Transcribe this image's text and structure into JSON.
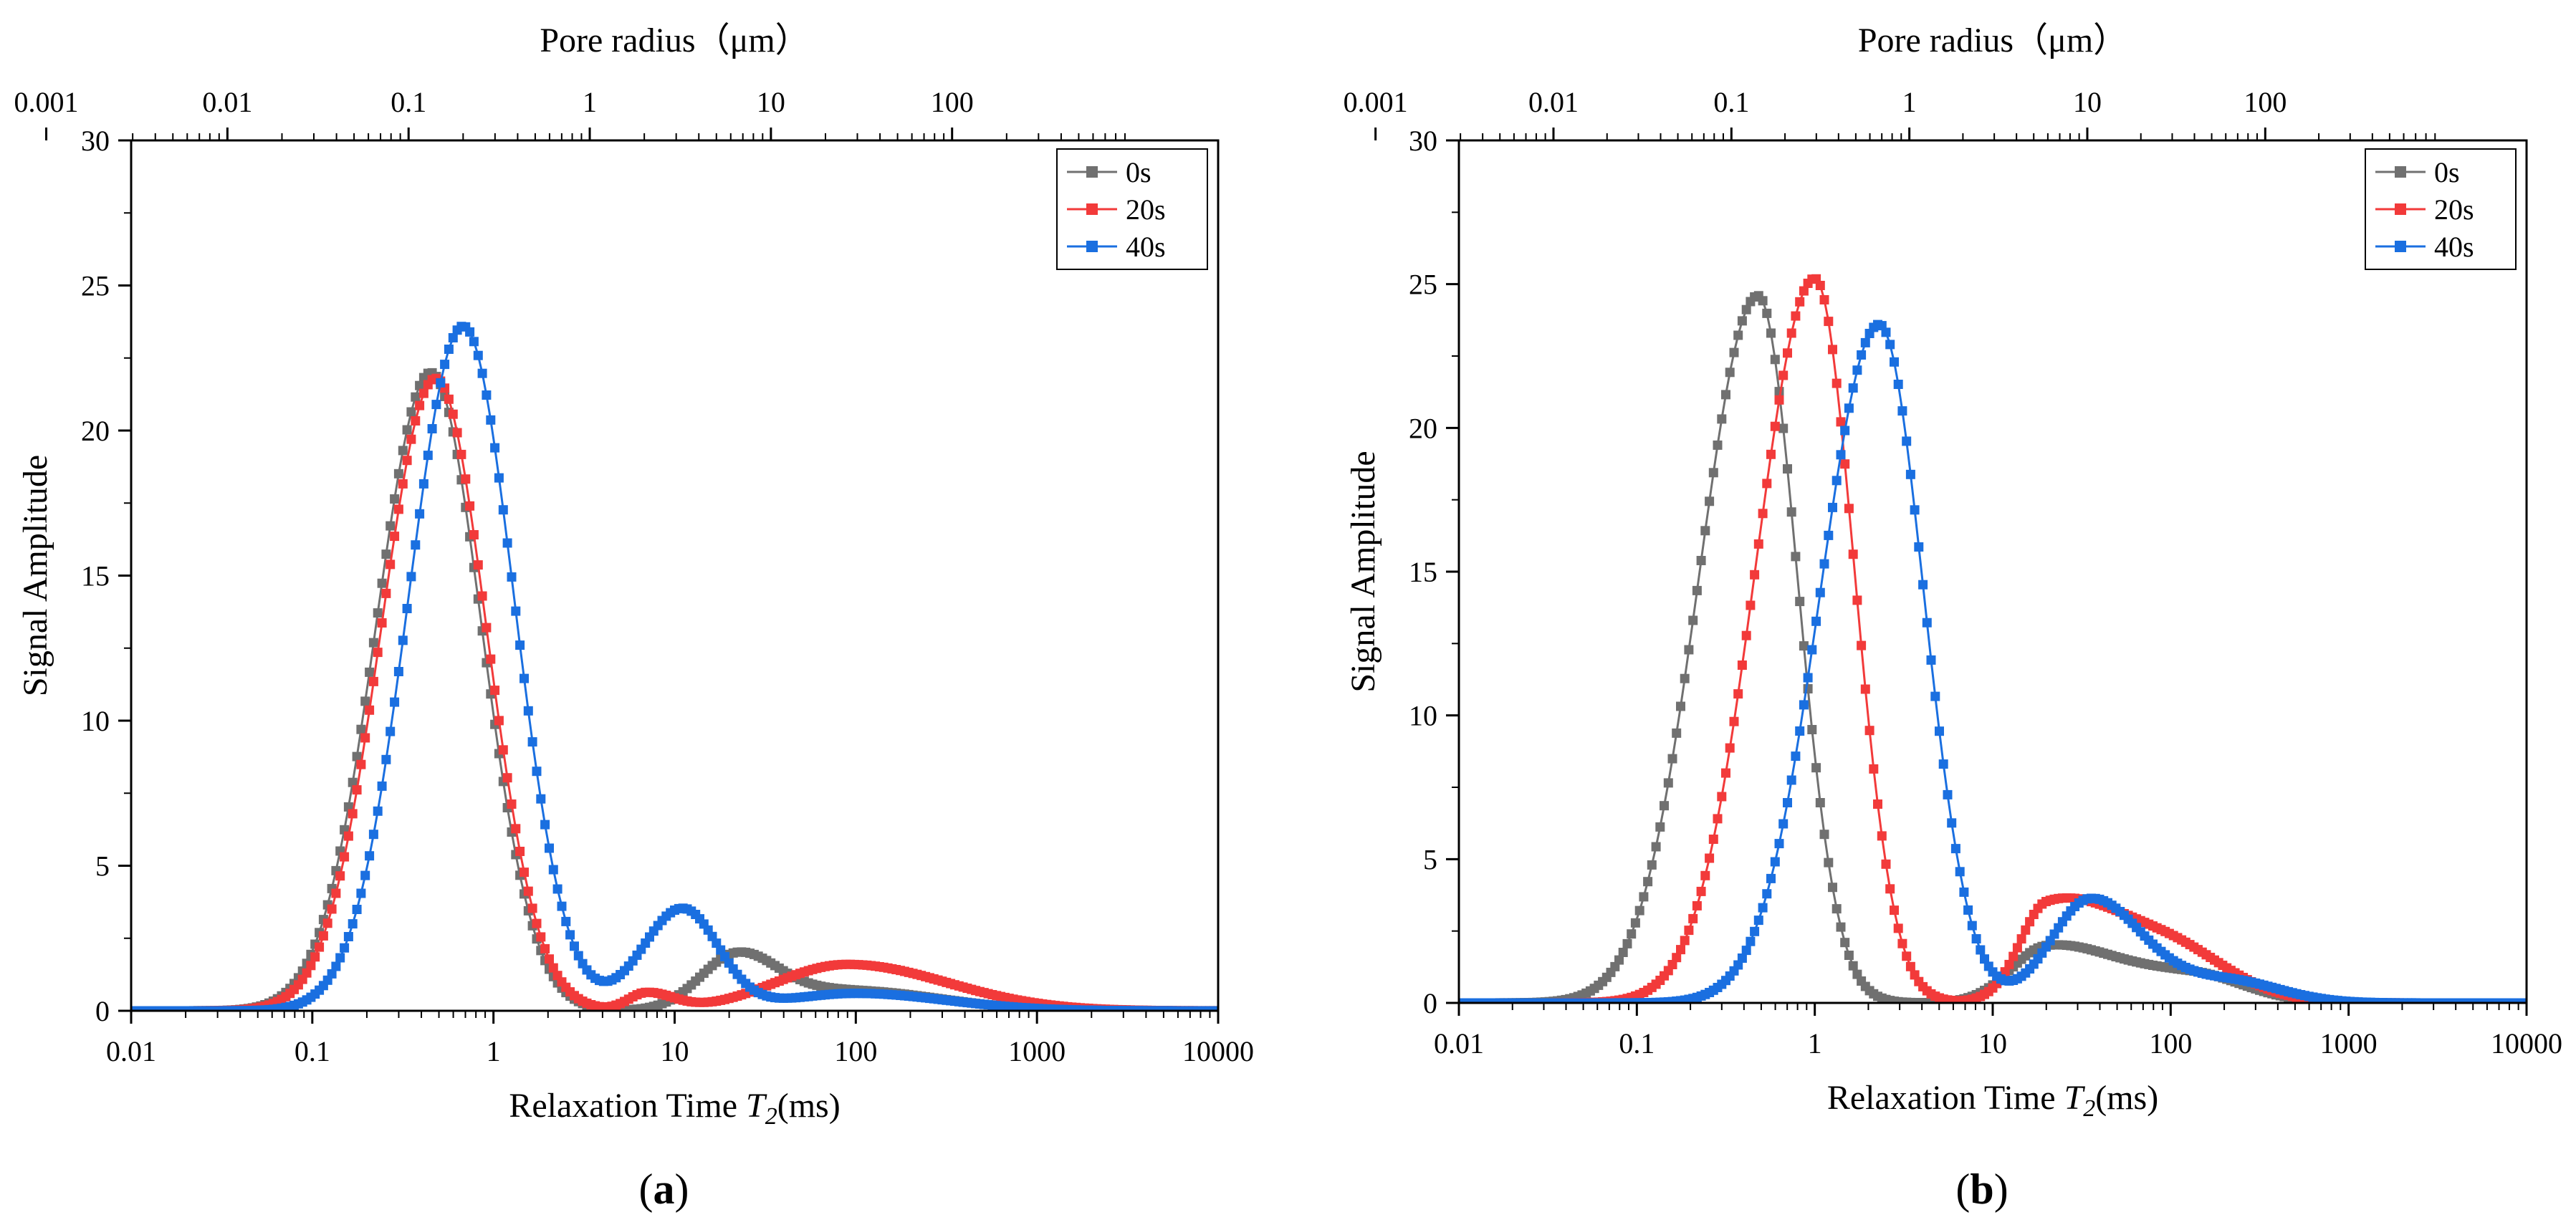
{
  "colors": {
    "0s": "#707070",
    "20s": "#f23a3a",
    "40s": "#1a6fe0"
  },
  "chart_data": [
    {
      "type": "scatter",
      "panel_label": "(a)",
      "panel_letter": "a",
      "xlabel": "Relaxation Time T2(ms)",
      "xlabel_parts": {
        "pre": "Relaxation Time ",
        "var": "T",
        "sub": "2",
        "post": "(ms)"
      },
      "ylabel": "Signal Amplitude",
      "top_xlabel": "Pore radius（μm）",
      "xscale": "log",
      "xlim": [
        0.01,
        10000
      ],
      "ylim": [
        0,
        30
      ],
      "x_ticks": [
        "0.01",
        "0.1",
        "1",
        "10",
        "100",
        "1000",
        "10000"
      ],
      "y_ticks": [
        "0",
        "5",
        "10",
        "15",
        "20",
        "25",
        "30"
      ],
      "top_ticks": [
        "0.001",
        "0.01",
        "0.1",
        "1",
        "10",
        "100"
      ],
      "top_tick_positions_ms": [
        0.0034,
        0.034,
        0.34,
        3.4,
        34,
        340
      ],
      "legend_position": "top-right",
      "series": [
        {
          "name": "0s",
          "peaks": [
            [
              0.45,
              22.0,
              0.3,
              0.28
            ],
            [
              22,
              1.8,
              0.2,
              0.22
            ],
            [
              90,
              0.7,
              0.4,
              0.5
            ]
          ]
        },
        {
          "name": "20s",
          "peaks": [
            [
              0.48,
              21.8,
              0.3,
              0.28
            ],
            [
              7,
              0.6,
              0.1,
              0.15
            ],
            [
              90,
              1.6,
              0.4,
              0.55
            ]
          ]
        },
        {
          "name": "40s",
          "peaks": [
            [
              0.68,
              23.6,
              0.3,
              0.28
            ],
            [
              11,
              3.5,
              0.22,
              0.2
            ],
            [
              100,
              0.6,
              0.4,
              0.5
            ]
          ]
        }
      ]
    },
    {
      "type": "scatter",
      "panel_label": "(b)",
      "panel_letter": "b",
      "xlabel": "Relaxation Time T2(ms)",
      "xlabel_parts": {
        "pre": "Relaxation Time ",
        "var": "T",
        "sub": "2",
        "post": "(ms)"
      },
      "ylabel": "Signal Amplitude",
      "top_xlabel": "Pore radius（μm）",
      "xscale": "log",
      "xlim": [
        0.01,
        10000
      ],
      "ylim": [
        0,
        30
      ],
      "x_ticks": [
        "0.01",
        "0.1",
        "1",
        "10",
        "100",
        "1000",
        "10000"
      ],
      "y_ticks": [
        "0",
        "5",
        "10",
        "15",
        "20",
        "25",
        "30"
      ],
      "top_ticks": [
        "0.001",
        "0.01",
        "0.1",
        "1",
        "10",
        "100"
      ],
      "top_tick_positions_ms": [
        0.0034,
        0.034,
        0.34,
        3.4,
        34,
        340
      ],
      "legend_position": "top-right",
      "series": [
        {
          "name": "0s",
          "peaks": [
            [
              0.48,
              24.6,
              0.33,
              0.22
            ],
            [
              20,
              1.8,
              0.2,
              0.35
            ],
            [
              130,
              1.0,
              0.45,
              0.3
            ]
          ]
        },
        {
          "name": "20s",
          "peaks": [
            [
              1.0,
              25.2,
              0.33,
              0.22
            ],
            [
              20,
              3.0,
              0.15,
              0.35
            ],
            [
              90,
              2.0,
              0.4,
              0.35
            ]
          ]
        },
        {
          "name": "40s",
          "peaks": [
            [
              2.3,
              23.6,
              0.33,
              0.25
            ],
            [
              35,
              3.5,
              0.22,
              0.28
            ],
            [
              200,
              0.8,
              0.4,
              0.3
            ]
          ]
        }
      ]
    }
  ]
}
